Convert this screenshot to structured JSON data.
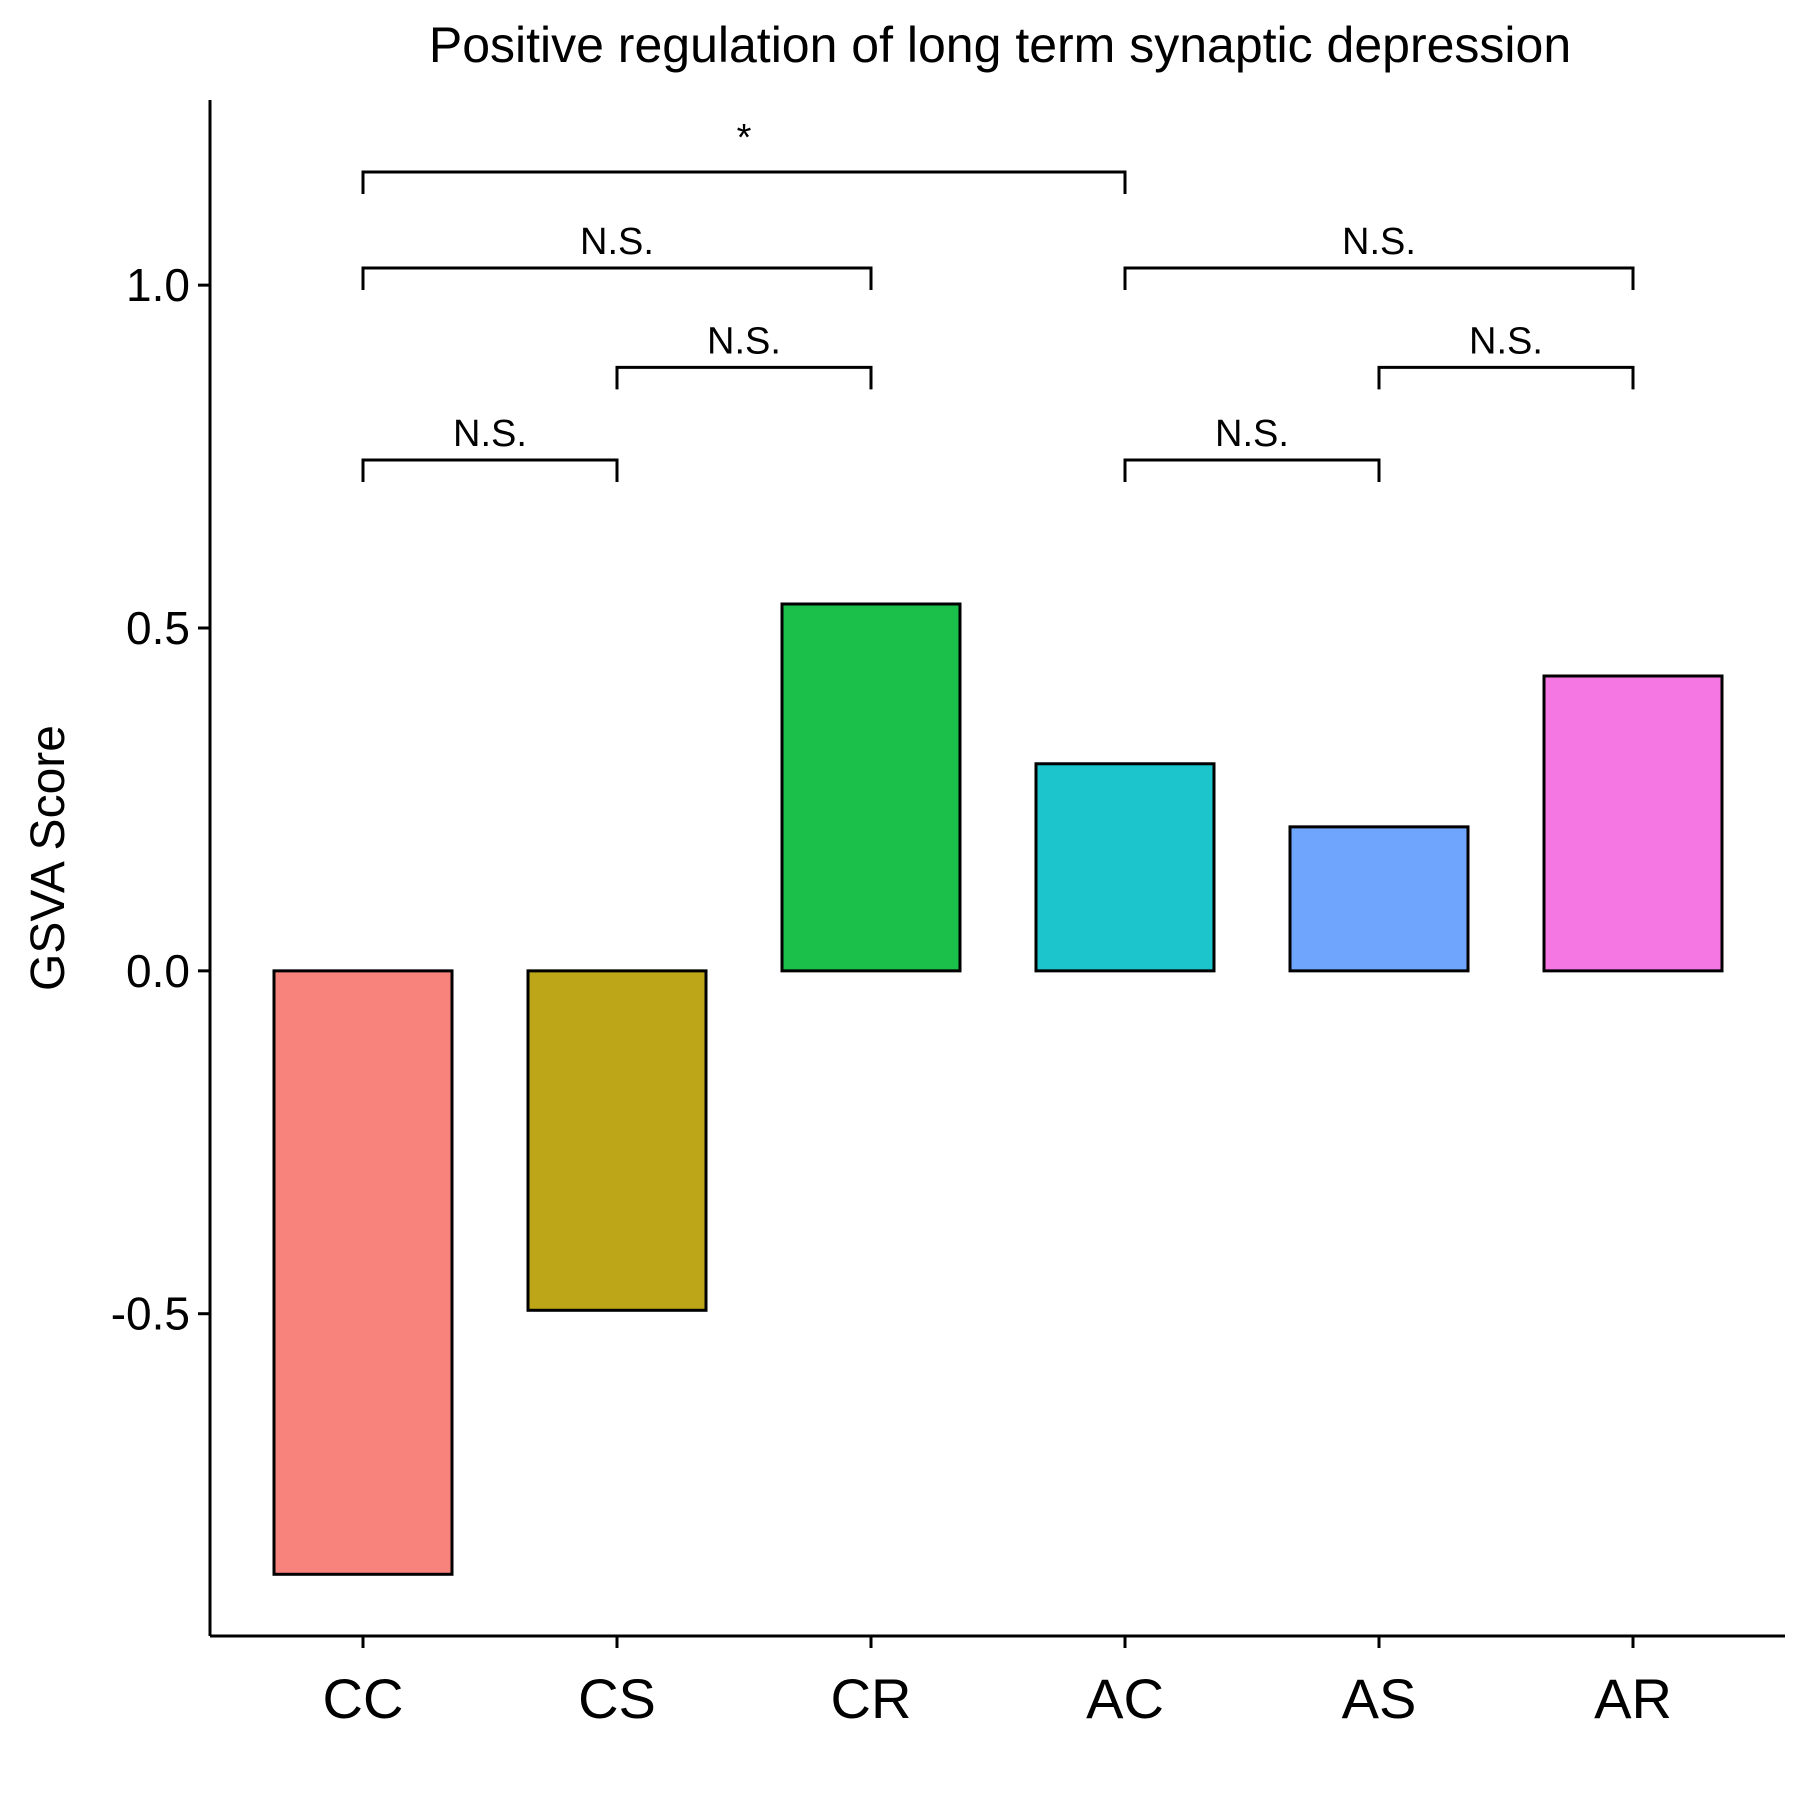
{
  "chart_data": {
    "type": "bar",
    "title": "Positive regulation of long term synaptic depression",
    "xlabel": "",
    "ylabel": "GSVA Score",
    "categories": [
      "CC",
      "CS",
      "CR",
      "AC",
      "AS",
      "AR"
    ],
    "values": [
      -0.88,
      -0.495,
      0.535,
      0.302,
      0.21,
      0.43
    ],
    "colors": [
      "#F8837C",
      "#BDA618",
      "#1BC04B",
      "#1CC4CB",
      "#6FA5FD",
      "#F477E3"
    ],
    "ylim": [
      -0.97,
      1.27
    ],
    "yticks": [
      -0.5,
      0.0,
      0.5,
      1.0
    ],
    "ytick_labels": [
      "-0.5",
      "0.0",
      "0.5",
      "1.0"
    ],
    "grid": false,
    "legend": "none",
    "comparisons": [
      {
        "from": "CC",
        "to": "CS",
        "level": 0.745,
        "label": "N.S."
      },
      {
        "from": "CS",
        "to": "CR",
        "level": 0.88,
        "label": "N.S."
      },
      {
        "from": "CC",
        "to": "CR",
        "level": 1.025,
        "label": "N.S."
      },
      {
        "from": "AC",
        "to": "AS",
        "level": 0.745,
        "label": "N.S."
      },
      {
        "from": "AS",
        "to": "AR",
        "level": 0.88,
        "label": "N.S."
      },
      {
        "from": "AC",
        "to": "AR",
        "level": 1.025,
        "label": "N.S."
      },
      {
        "from": "CC",
        "to": "AC",
        "level": 1.165,
        "label": "*"
      }
    ]
  }
}
